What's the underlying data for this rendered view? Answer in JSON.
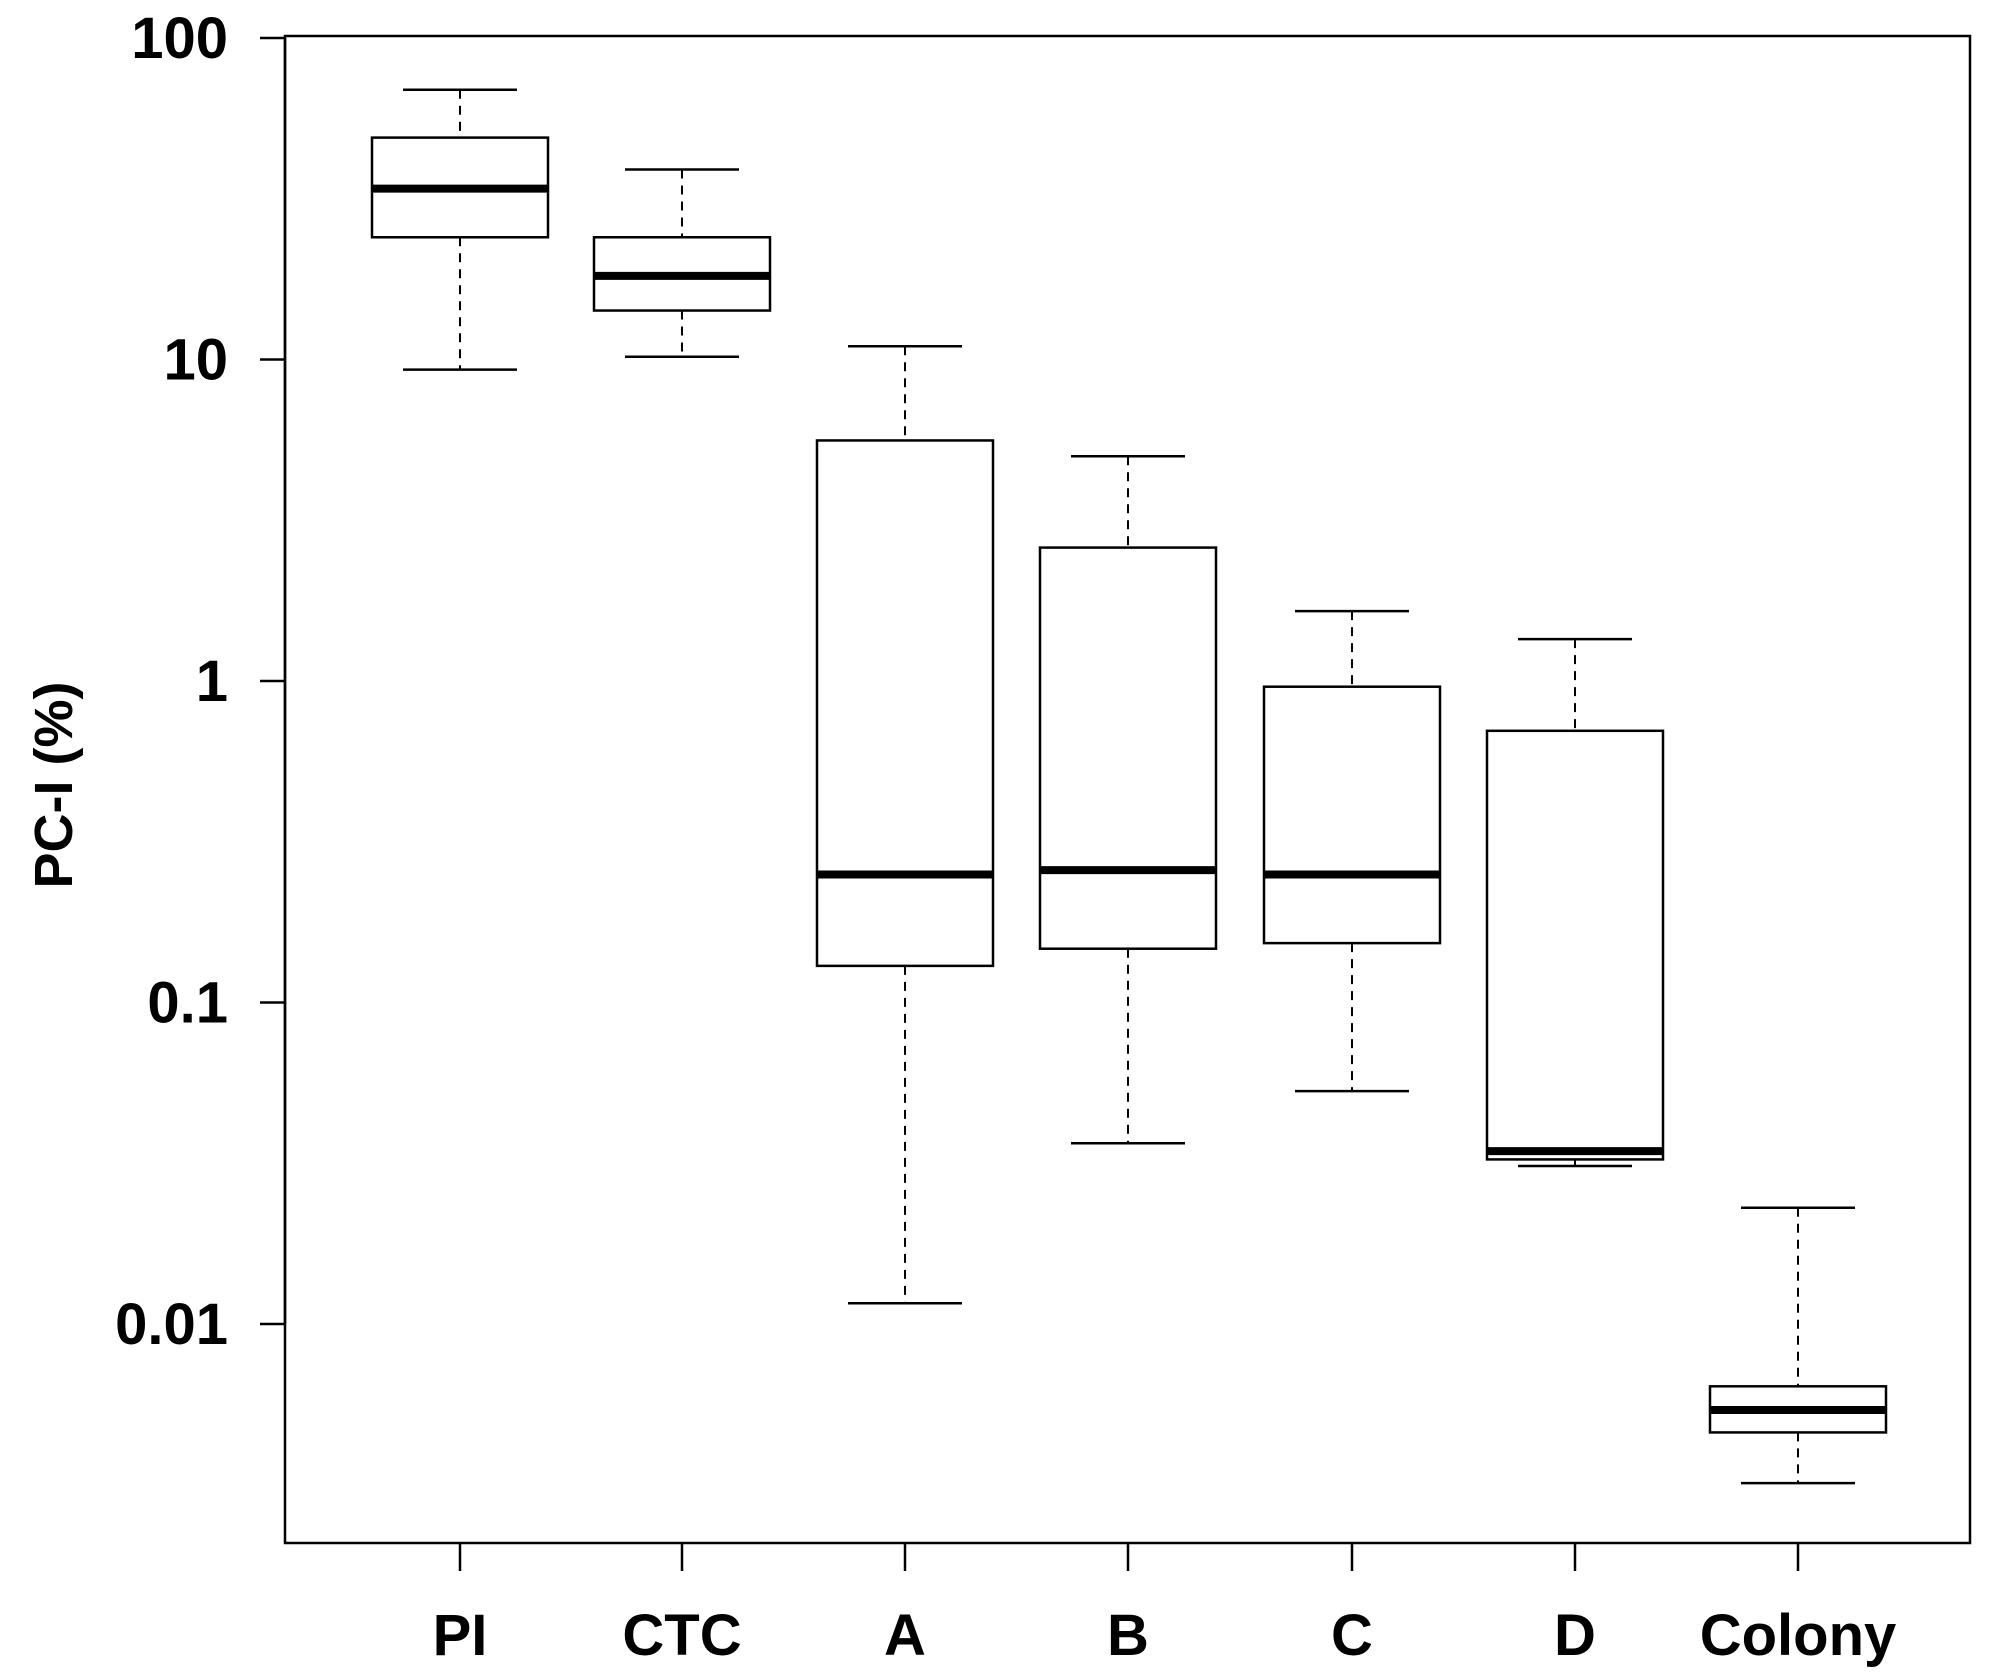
{
  "chart_data": {
    "type": "boxplot",
    "ylabel": "PC-I (%)",
    "xlabel": "",
    "yscale": "log",
    "ylim": [
      0.0014,
      100
    ],
    "yticks": [
      {
        "value": 100,
        "label": "100"
      },
      {
        "value": 10,
        "label": "10"
      },
      {
        "value": 1,
        "label": "1"
      },
      {
        "value": 0.1,
        "label": "0.1"
      },
      {
        "value": 0.01,
        "label": "0.01"
      }
    ],
    "categories": [
      "PI",
      "CTC",
      "A",
      "B",
      "C",
      "D",
      "Colony"
    ],
    "boxes": [
      {
        "name": "PI",
        "whisker_low": 9.3,
        "q1": 24,
        "median": 34,
        "q3": 49,
        "whisker_high": 69
      },
      {
        "name": "CTC",
        "whisker_low": 10.2,
        "q1": 14.2,
        "median": 18.2,
        "q3": 24,
        "whisker_high": 39
      },
      {
        "name": "A",
        "whisker_low": 0.0116,
        "q1": 0.13,
        "median": 0.25,
        "q3": 5.6,
        "whisker_high": 11
      },
      {
        "name": "B",
        "whisker_low": 0.0365,
        "q1": 0.147,
        "median": 0.258,
        "q3": 2.6,
        "whisker_high": 5
      },
      {
        "name": "C",
        "whisker_low": 0.053,
        "q1": 0.153,
        "median": 0.25,
        "q3": 0.96,
        "whisker_high": 1.65
      },
      {
        "name": "D",
        "whisker_low": 0.031,
        "q1": 0.0325,
        "median": 0.0345,
        "q3": 0.7,
        "whisker_high": 1.35
      },
      {
        "name": "Colony",
        "whisker_low": 0.0032,
        "q1": 0.0046,
        "median": 0.0054,
        "q3": 0.0064,
        "whisker_high": 0.023
      }
    ]
  }
}
